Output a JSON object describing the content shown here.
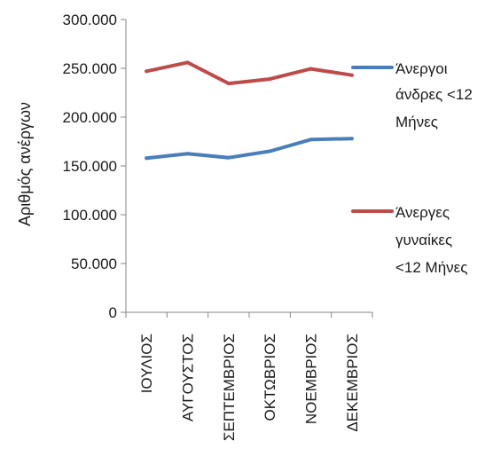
{
  "chart_data": {
    "type": "line",
    "title": "",
    "xlabel": "",
    "ylabel": "Αριθμός ανέργων",
    "categories": [
      "ΙΟΥΛΙΟΣ",
      "ΑΥΓΟΥΣΤΟΣ",
      "ΣΕΠΤΕΜΒΡΙΟΣ",
      "ΟΚΤΩΒΡΙΟΣ",
      "ΝΟΕΜΒΡΙΟΣ",
      "ΔΕΚΕΜΒΡΙΟΣ"
    ],
    "ylim": [
      0,
      300000
    ],
    "yticks": [
      "0",
      "50.000",
      "100.000",
      "150.000",
      "200.000",
      "250.000",
      "300.000"
    ],
    "ytick_values": [
      0,
      50000,
      100000,
      150000,
      200000,
      250000,
      300000
    ],
    "grid": false,
    "legend_position": "right",
    "series": [
      {
        "name": "Άνεργοι άνδρες <12 Μήνες",
        "name_lines": [
          "Άνεργοι",
          "άνδρες <12",
          "Μήνες"
        ],
        "color": "#4a7ebb",
        "values": [
          158000,
          162500,
          158500,
          165000,
          177000,
          178000
        ]
      },
      {
        "name": "Άνεργες γυναίκες <12 Μήνες",
        "name_lines": [
          "Άνεργες",
          "γυναίκες",
          "<12 Μήνες"
        ],
        "color": "#be4b48",
        "values": [
          247000,
          256000,
          234500,
          239000,
          249500,
          243000
        ]
      }
    ]
  }
}
